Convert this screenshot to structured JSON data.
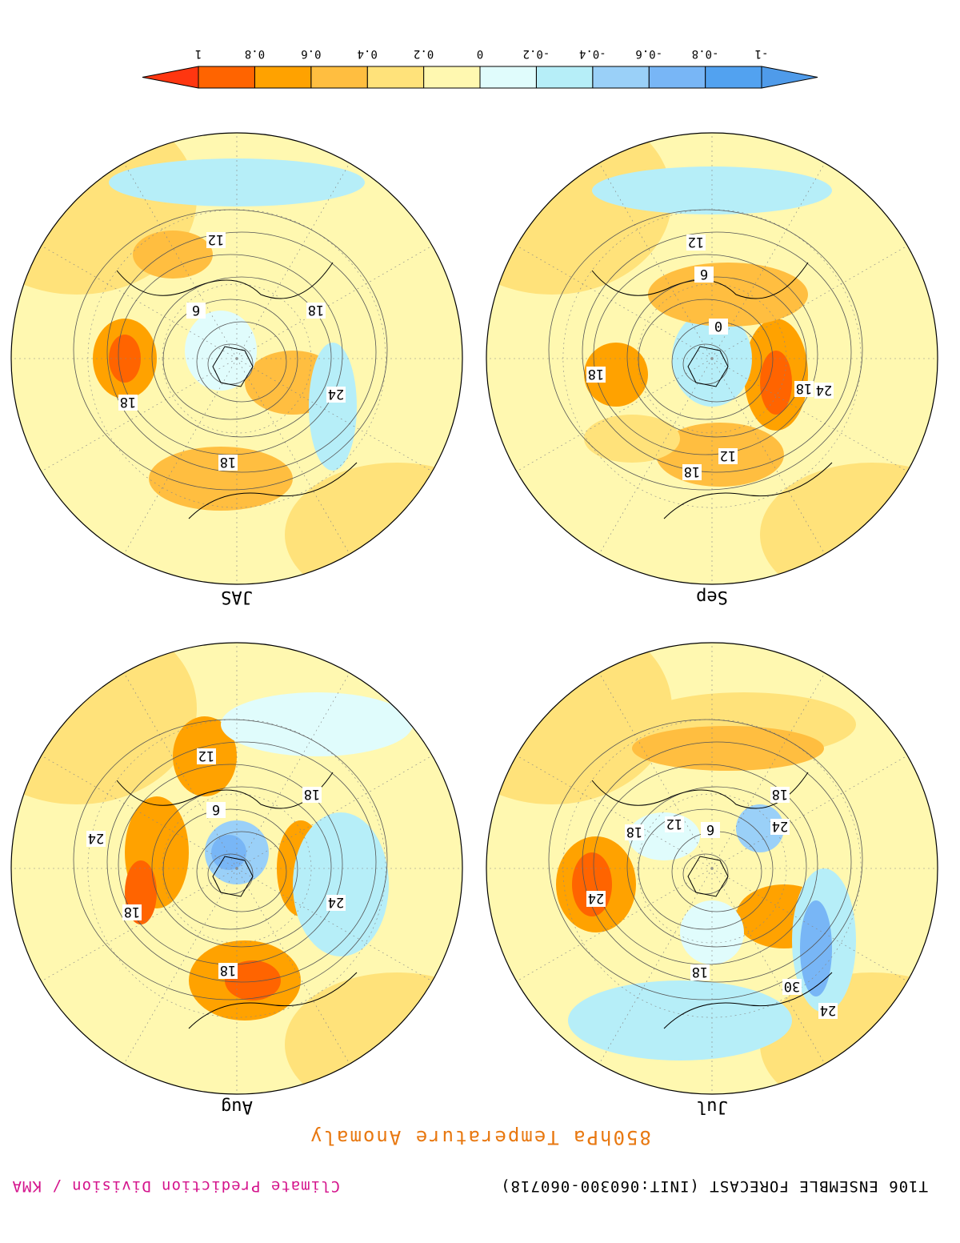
{
  "header": {
    "title": "850hPa Temperature Anomaly",
    "model_info": "T106 ENSEMBLE FORECAST (INIT:060300-060718)",
    "credit": "Climate Prediction Division / KMA"
  },
  "maps": [
    {
      "label": "Jul",
      "contour_labels": [
        "18",
        "24",
        "12",
        "6",
        "18",
        "24",
        "18",
        "30",
        "24"
      ]
    },
    {
      "label": "Aug",
      "contour_labels": [
        "12",
        "18",
        "6",
        "24",
        "18",
        "24",
        "18"
      ]
    },
    {
      "label": "Sep",
      "contour_labels": [
        "12",
        "6",
        "0",
        "18",
        "24",
        "18",
        "12",
        "18"
      ]
    },
    {
      "label": "JAS",
      "contour_labels": [
        "12",
        "6",
        "18",
        "18",
        "24",
        "18"
      ]
    }
  ],
  "colorbar": {
    "tick_labels": [
      "-1",
      "-0.8",
      "-0.6",
      "-0.4",
      "-0.2",
      "0",
      "0.2",
      "0.4",
      "0.6",
      "0.8",
      "1"
    ],
    "colors": [
      "#4f9bea",
      "#52a2f0",
      "#78b6f6",
      "#9ad0f8",
      "#b6eef8",
      "#e0fcfc",
      "#fff8b0",
      "#ffe27a",
      "#ffbe40",
      "#ffa200",
      "#ff6400",
      "#ff3610"
    ]
  }
}
